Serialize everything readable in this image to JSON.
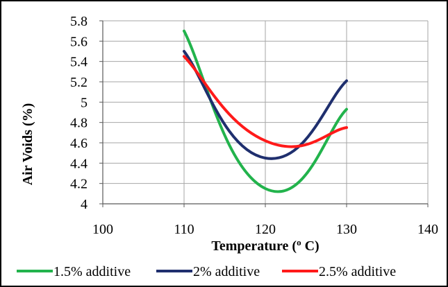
{
  "chart_data": {
    "type": "line",
    "title": "",
    "xlabel": "Temperature (o C)",
    "xlabel_main": "Temperature (",
    "xlabel_sup": "o",
    "xlabel_end": " C)",
    "ylabel": "Air Voids (%)",
    "xlim": [
      100,
      140
    ],
    "ylim": [
      4,
      5.8
    ],
    "xticks": [
      100,
      110,
      120,
      130,
      140
    ],
    "xtick_labels": [
      "100",
      "110",
      "120",
      "130",
      "140"
    ],
    "yticks": [
      4,
      4.2,
      4.4,
      4.6,
      4.8,
      5,
      5.2,
      5.4,
      5.6,
      5.8
    ],
    "ytick_labels": [
      "4",
      "4.2",
      "4.4",
      "4.6",
      "4.8",
      "5",
      "5.2",
      "5.4",
      "5.6",
      "5.8"
    ],
    "grid": true,
    "legend_position": "bottom",
    "smooth": true,
    "series": [
      {
        "name": "1.5% additive",
        "color": "#22b34c",
        "x": [
          110,
          120,
          130
        ],
        "y": [
          5.7,
          4.15,
          4.93
        ]
      },
      {
        "name": "2% additive",
        "color": "#1f2f6e",
        "x": [
          110,
          120,
          130
        ],
        "y": [
          5.5,
          4.45,
          5.21
        ]
      },
      {
        "name": "2.5% additive",
        "color": "#ff1a1a",
        "x": [
          110,
          120,
          130
        ],
        "y": [
          5.45,
          4.62,
          4.75
        ]
      }
    ]
  }
}
